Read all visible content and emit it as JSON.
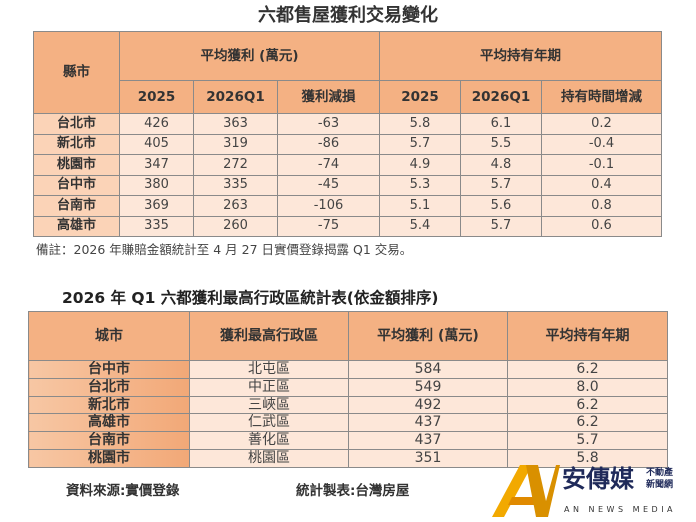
{
  "title1": "六都售屋獲利交易變化",
  "table1": {
    "city_header": "縣市",
    "group1": "平均獲利 (萬元)",
    "group2": "平均持有年期",
    "sub": [
      "2025",
      "2026Q1",
      "獲利減損",
      "2025",
      "2026Q1",
      "持有時間增減"
    ],
    "rows": [
      [
        "台北市",
        "426",
        "363",
        "-63",
        "5.8",
        "6.1",
        "0.2"
      ],
      [
        "新北市",
        "405",
        "319",
        "-86",
        "5.7",
        "5.5",
        "-0.4"
      ],
      [
        "桃園市",
        "347",
        "272",
        "-74",
        "4.9",
        "4.8",
        "-0.1"
      ],
      [
        "台中市",
        "380",
        "335",
        "-45",
        "5.3",
        "5.7",
        "0.4"
      ],
      [
        "台南市",
        "369",
        "263",
        "-106",
        "5.1",
        "5.6",
        "0.8"
      ],
      [
        "高雄市",
        "335",
        "260",
        "-75",
        "5.4",
        "5.7",
        "0.6"
      ]
    ]
  },
  "note": "備註：2026 年賺賠金額統計至 4 月 27 日實價登錄揭露 Q1 交易。",
  "title2": "2026  年 Q1 六都獲利最高行政區統計表(依金額排序)",
  "table2": {
    "headers": [
      "城市",
      "獲利最高行政區",
      "平均獲利 (萬元)",
      "平均持有年期"
    ],
    "rows": [
      [
        "台中市",
        "北屯區",
        "584",
        "6.2"
      ],
      [
        "台北市",
        "中正區",
        "549",
        "8.0"
      ],
      [
        "新北市",
        "三峽區",
        "492",
        "6.2"
      ],
      [
        "高雄市",
        "仁武區",
        "437",
        "6.2"
      ],
      [
        "台南市",
        "善化區",
        "437",
        "5.7"
      ],
      [
        "桃園市",
        "桃園區",
        "351",
        "5.8"
      ]
    ]
  },
  "footer": {
    "source": "資料來源:實價登錄",
    "maker": "統計製表:台灣房屋"
  },
  "logo": {
    "name": "安傳媒",
    "tag1": "不動產",
    "tag2": "新聞網",
    "en": "AN NEWS MEDIA"
  },
  "colors": {
    "header": "#f4b183",
    "cell": "#fde7d9",
    "logo_gold": "#f2a900"
  }
}
